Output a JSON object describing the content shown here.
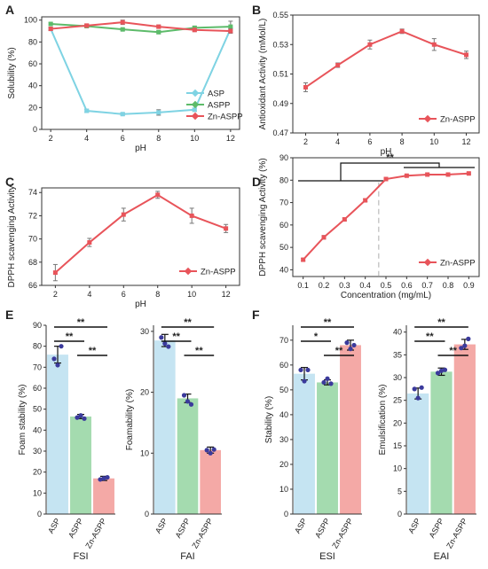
{
  "panels": [
    {
      "id": "A",
      "label": "A"
    },
    {
      "id": "B",
      "label": "B"
    },
    {
      "id": "C",
      "label": "C"
    },
    {
      "id": "D",
      "label": "D"
    },
    {
      "id": "E",
      "label": "E"
    },
    {
      "id": "F",
      "label": "F"
    }
  ],
  "colors": {
    "asp": "#7fd3e3",
    "aspp": "#5dbb6a",
    "znaspp": "#e8545a",
    "bar_asp": "#bfe1f1",
    "bar_aspp": "#9ad7a6",
    "bar_zn": "#f3a09c",
    "dots": "#3b3a9c"
  },
  "chart_data": [
    {
      "panel": "A",
      "type": "line",
      "xlabel": "pH",
      "ylabel": "Solubility (%)",
      "x": [
        2,
        4,
        6,
        8,
        10,
        12
      ],
      "xticks": [
        "2",
        "4",
        "6",
        "8",
        "10",
        "12"
      ],
      "yticks": [
        "0",
        "20",
        "40",
        "60",
        "80",
        "100"
      ],
      "xlim": [
        1.5,
        12.5
      ],
      "ylim": [
        0,
        103
      ],
      "legend": "center-right",
      "series": [
        {
          "name": "ASP",
          "color": "#7fd3e3",
          "values": [
            92,
            17,
            14,
            15.5,
            18,
            92
          ],
          "errors": [
            1,
            1.5,
            1,
            2.5,
            1.5,
            1.5
          ]
        },
        {
          "name": "ASPP",
          "color": "#5dbb6a",
          "values": [
            96.5,
            94.5,
            91.5,
            89,
            93,
            94
          ],
          "errors": [
            1,
            1,
            1,
            1.5,
            1.5,
            5
          ]
        },
        {
          "name": "Zn-ASPP",
          "color": "#e8545a",
          "values": [
            92,
            95,
            98,
            94,
            91,
            90
          ],
          "errors": [
            1.5,
            1.5,
            2,
            1.5,
            1.5,
            2
          ]
        }
      ]
    },
    {
      "panel": "B",
      "type": "line",
      "xlabel": "pH",
      "ylabel": "Antioxidant Activity (mMol/L)",
      "x": [
        2,
        4,
        6,
        8,
        10,
        12
      ],
      "xticks": [
        "2",
        "4",
        "6",
        "8",
        "10",
        "12"
      ],
      "yticks": [
        "0.47",
        "0.49",
        "0.51",
        "0.53",
        "0.55"
      ],
      "xlim": [
        1.2,
        12.8
      ],
      "ylim": [
        0.47,
        0.55
      ],
      "legend": "bottom-right",
      "series": [
        {
          "name": "Zn-ASPP",
          "color": "#e8545a",
          "values": [
            0.501,
            0.516,
            0.53,
            0.539,
            0.53,
            0.523
          ],
          "errors": [
            0.003,
            0.0015,
            0.003,
            0.0015,
            0.004,
            0.0025
          ]
        }
      ]
    },
    {
      "panel": "C",
      "type": "line",
      "xlabel": "pH",
      "ylabel": "DPPH scavenging Activity",
      "x": [
        2,
        4,
        6,
        8,
        10,
        12
      ],
      "xticks": [
        "2",
        "4",
        "6",
        "8",
        "10",
        "12"
      ],
      "yticks": [
        "66",
        "68",
        "70",
        "72",
        "74"
      ],
      "xlim": [
        1.2,
        12.8
      ],
      "ylim": [
        66,
        74.4
      ],
      "legend": "bottom-right",
      "series": [
        {
          "name": "Zn-ASPP",
          "color": "#e8545a",
          "values": [
            67.1,
            69.7,
            72.1,
            73.8,
            72.0,
            70.9
          ],
          "errors": [
            0.7,
            0.35,
            0.55,
            0.3,
            0.65,
            0.35
          ]
        }
      ]
    },
    {
      "panel": "D",
      "type": "line",
      "xlabel": "Concentration (mg/mL)",
      "ylabel": "DPPH scavenging Activity (%)",
      "x": [
        0.1,
        0.2,
        0.3,
        0.4,
        0.5,
        0.6,
        0.7,
        0.8,
        0.9
      ],
      "xticks": [
        "0.1",
        "0.2",
        "0.3",
        "0.4",
        "0.5",
        "0.6",
        "0.7",
        "0.8",
        "0.9"
      ],
      "yticks": [
        "40",
        "50",
        "60",
        "70",
        "80",
        "90"
      ],
      "xlim": [
        0.05,
        0.95
      ],
      "ylim": [
        37,
        90
      ],
      "legend": "bottom-right",
      "significance": "**",
      "series": [
        {
          "name": "Zn-ASPP",
          "color": "#e8545a",
          "values": [
            44.5,
            54.5,
            62.5,
            71,
            80.5,
            82,
            82.5,
            82.5,
            83
          ],
          "errors": [
            0.6,
            0.8,
            0.6,
            0.6,
            0.4,
            0.3,
            0.3,
            0.3,
            0.3
          ]
        }
      ]
    },
    {
      "panel": "E",
      "type": "bar",
      "group": "FSI",
      "ylabel": "Foam stability (%)",
      "categories": [
        "ASP",
        "ASPP",
        "Zn-ASPP"
      ],
      "values": [
        76,
        46.5,
        17
      ],
      "errors": [
        4,
        1,
        1
      ],
      "points": [
        [
          74,
          71,
          80
        ],
        [
          46,
          47,
          45.5
        ],
        [
          16.5,
          17,
          17.5
        ]
      ],
      "yticks": [
        "0",
        "10",
        "20",
        "30",
        "40",
        "50",
        "60",
        "70",
        "80",
        "90"
      ],
      "ylim": [
        0,
        90
      ],
      "significance": [
        "**",
        "**",
        "**"
      ]
    },
    {
      "panel": "E",
      "type": "bar",
      "group": "FAI",
      "ylabel": "Foamability (%)",
      "categories": [
        "ASP",
        "ASPP",
        "Zn-ASPP"
      ],
      "values": [
        28.5,
        19,
        10.5
      ],
      "errors": [
        1,
        0.7,
        0.5
      ],
      "points": [
        [
          29,
          28,
          27.5
        ],
        [
          19.5,
          18.5,
          18
        ],
        [
          10.5,
          10,
          10.6
        ]
      ],
      "yticks": [
        "0",
        "10",
        "20",
        "30"
      ],
      "ylim": [
        0,
        31
      ],
      "significance": [
        "**",
        "**",
        "**"
      ]
    },
    {
      "panel": "F",
      "type": "bar",
      "group": "ESI",
      "ylabel": "Stability (%)",
      "categories": [
        "ASP",
        "ASPP",
        "Zn-ASPP"
      ],
      "values": [
        56.5,
        53,
        68
      ],
      "errors": [
        2.5,
        1,
        2
      ],
      "points": [
        [
          58,
          53.5,
          58
        ],
        [
          53,
          54.5,
          52.5
        ],
        [
          69,
          66.5,
          68
        ]
      ],
      "yticks": [
        "0",
        "10",
        "20",
        "30",
        "40",
        "50",
        "60",
        "70"
      ],
      "ylim": [
        0,
        76
      ],
      "significance": [
        "**",
        "*",
        "**"
      ]
    },
    {
      "panel": "F",
      "type": "bar",
      "group": "EAI",
      "ylabel": "Emulsification (%)",
      "categories": [
        "ASP",
        "ASPP",
        "Zn-ASPP"
      ],
      "values": [
        26.5,
        31.3,
        37.3
      ],
      "errors": [
        1.2,
        0.8,
        1.1
      ],
      "points": [
        [
          27.5,
          25.5,
          27.8
        ],
        [
          31,
          31.5,
          31.7
        ],
        [
          36.5,
          37,
          38.5
        ]
      ],
      "yticks": [
        "0",
        "5",
        "10",
        "15",
        "20",
        "25",
        "30",
        "35",
        "40"
      ],
      "ylim": [
        0,
        41.5
      ],
      "significance": [
        "**",
        "**",
        "**"
      ]
    }
  ]
}
